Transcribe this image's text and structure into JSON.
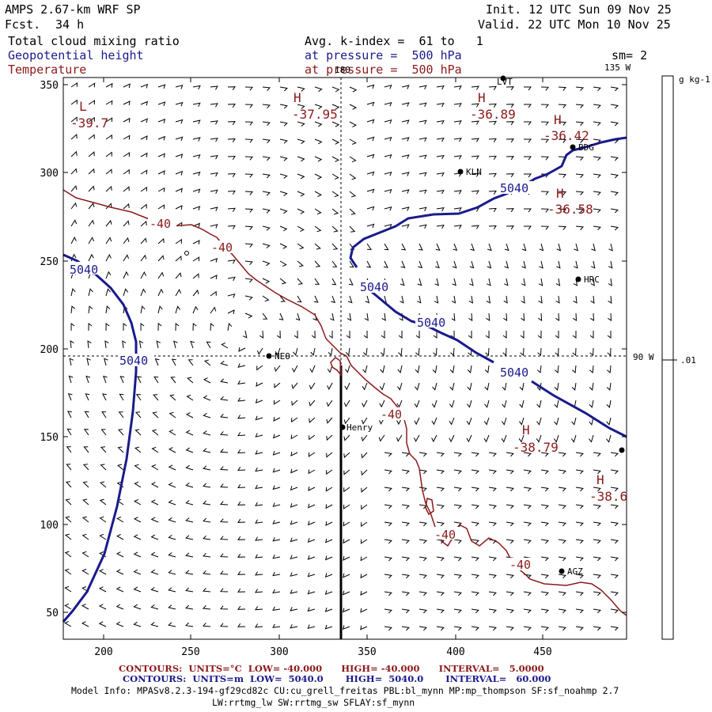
{
  "header": {
    "model": "AMPS 2.67-km WRF SP",
    "fcst_label": "Fcst.",
    "fcst_value": "34 h",
    "init": "Init. 12 UTC Sun 09 Nov 25",
    "valid": "Valid. 22 UTC Mon 10 Nov 25",
    "field1": "Total cloud mixing ratio",
    "field2": "Geopotential height",
    "field3": "Temperature",
    "avg": "Avg. k-index =  61 to   1",
    "press1": "at pressure =  500 hPa",
    "press2": "at pressure =  500 hPa",
    "sm": "sm= 2"
  },
  "colors": {
    "geopotential": "#1a1a8c",
    "temperature": "#8b1a1a",
    "text": "#000000"
  },
  "map": {
    "x_ticks": [
      "200",
      "250",
      "300",
      "350",
      "400",
      "450"
    ],
    "y_ticks": [
      "350",
      "300",
      "250",
      "200",
      "150",
      "100",
      "50"
    ],
    "meridian_180": "180",
    "meridian_135w": "135 W",
    "meridian_90w": "90 W",
    "height_labels": [
      "5040",
      "5040",
      "5040",
      "5040",
      "5040",
      "5040"
    ],
    "temp_labels": [
      "-40",
      "-40",
      "-40",
      "-40",
      "-40"
    ],
    "highs_lows": [
      {
        "letter": "L",
        "value": "-39.7"
      },
      {
        "letter": "H",
        "value": "-37.95"
      },
      {
        "letter": "H",
        "value": "-36.89"
      },
      {
        "letter": "H",
        "value": "-36.42"
      },
      {
        "letter": "H",
        "value": "-36.58"
      },
      {
        "letter": "H",
        "value": "-38.79"
      },
      {
        "letter": "H",
        "value": "-38.6"
      }
    ],
    "stations": [
      "KLN",
      "BDG",
      "HRC",
      "NEO",
      "Henry",
      "AGZ",
      "LVT"
    ]
  },
  "colorbar": {
    "units": "g kg-1",
    "value": ".01"
  },
  "footer": {
    "contours_temp": "CONTOURS:  UNITS=°C  LOW= -40.000      HIGH= -40.000      INTERVAL=   5.0000",
    "contours_height": "CONTOURS:  UNITS=m  LOW=  5040.0       HIGH=  5040.0       INTERVAL=   60.000",
    "model_info_1": "Model Info: MPASv8.2.3-194-gf29cd82c CU:cu_grell_freitas PBL:bl_mynn MP:mp_thompson SF:sf_noahmp 2.7",
    "model_info_2": "LW:rrtmg_lw SW:rrtmg_sw SFLAY:sf_mynn"
  }
}
